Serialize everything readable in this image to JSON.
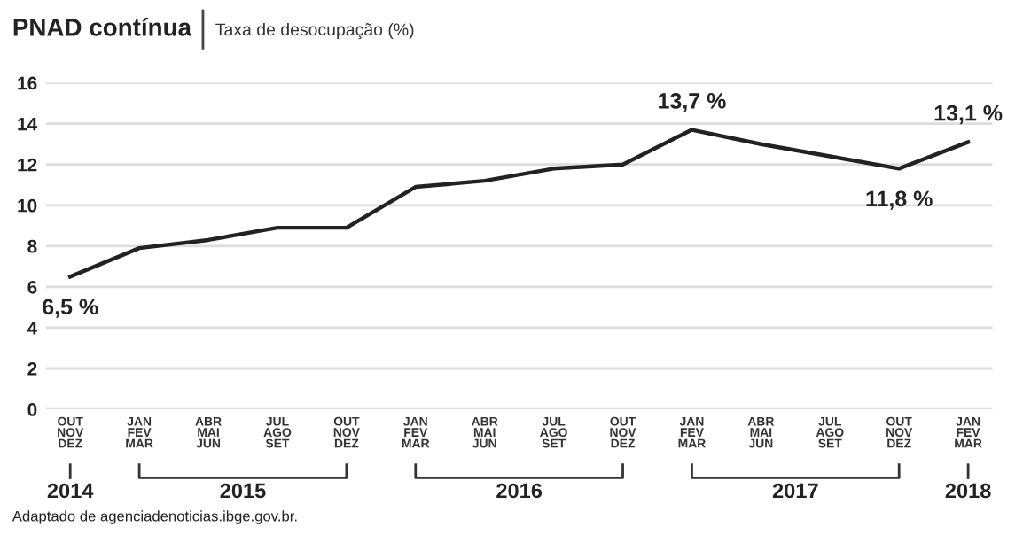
{
  "chart_data": {
    "type": "line",
    "title": "PNAD contínua",
    "subtitle": "Taxa de desocupação (%)",
    "categories": [
      "OUT\nNOV\nDEZ",
      "JAN\nFEV\nMAR",
      "ABR\nMAI\nJUN",
      "JUL\nAGO\nSET",
      "OUT\nNOV\nDEZ",
      "JAN\nFEV\nMAR",
      "ABR\nMAI\nJUN",
      "JUL\nAGO\nSET",
      "OUT\nNOV\nDEZ",
      "JAN\nFEV\nMAR",
      "ABR\nMAI\nJUN",
      "JUL\nAGO\nSET",
      "OUT\nNOV\nDEZ",
      "JAN\nFEV\nMAR"
    ],
    "series": [
      {
        "color": "#222222",
        "values": [
          6.5,
          7.9,
          8.3,
          8.9,
          8.9,
          10.9,
          11.2,
          11.8,
          12.0,
          13.7,
          13.0,
          12.4,
          11.8,
          13.1
        ],
        "value_labels": [
          "6,5 %",
          null,
          null,
          null,
          null,
          null,
          null,
          null,
          null,
          "13,7 %",
          null,
          null,
          "11,8 %",
          "13,1 %"
        ]
      }
    ],
    "ylim": [
      0,
      16
    ],
    "yticks": [
      0,
      2,
      4,
      6,
      8,
      10,
      12,
      14,
      16
    ],
    "grid": "y",
    "marker": "none",
    "line_style": "solid",
    "legend": false,
    "annotations": [
      "2014",
      "2015",
      "2016",
      "2017",
      "2018",
      "Adaptado de agenciadenoticias.ibge.gov.br."
    ]
  }
}
